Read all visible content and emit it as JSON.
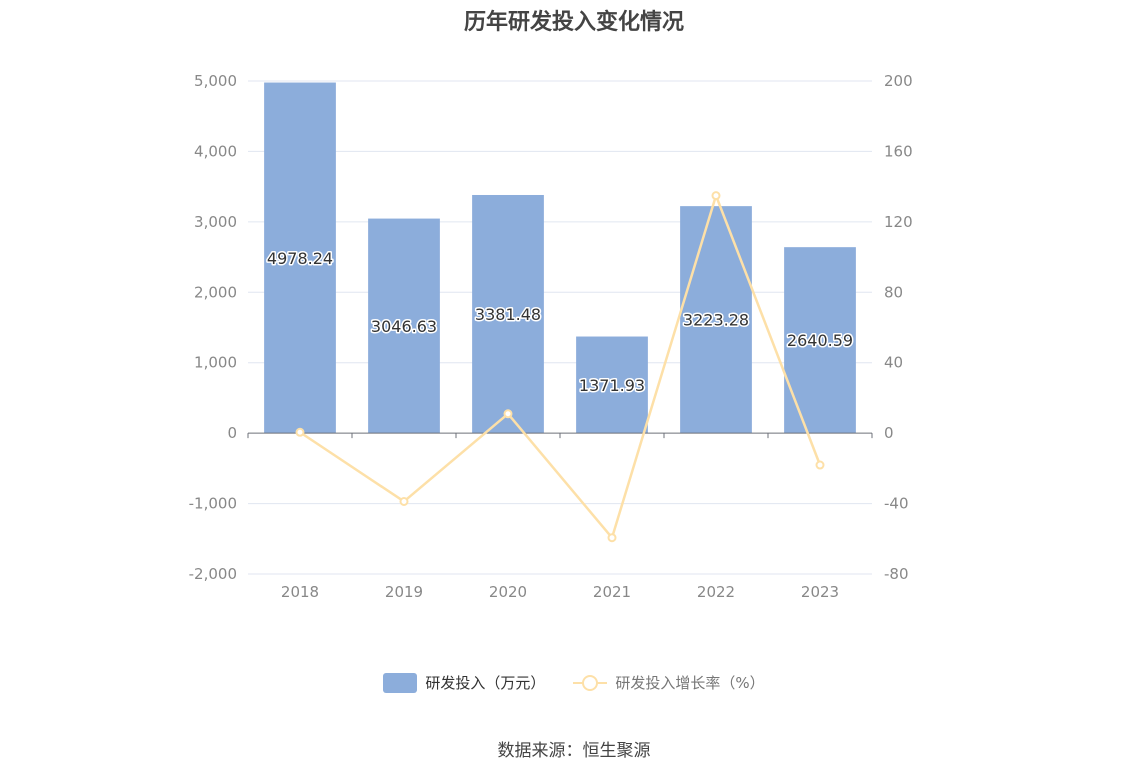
{
  "chart_data": {
    "type": "bar",
    "title": "历年研发投入变化情况",
    "categories": [
      "2018",
      "2019",
      "2020",
      "2021",
      "2022",
      "2023"
    ],
    "series": [
      {
        "name": "研发投入（万元）",
        "type": "bar",
        "axis": "left",
        "color": "#8caddb",
        "values": [
          4978.24,
          3046.63,
          3381.48,
          1371.93,
          3223.28,
          2640.59
        ],
        "data_labels": [
          "4978.24",
          "3046.63",
          "3381.48",
          "1371.93",
          "3223.28",
          "2640.59"
        ]
      },
      {
        "name": "研发投入增长率（%）",
        "type": "line",
        "axis": "right",
        "color": "#fde0a8",
        "values": [
          0.5,
          -38.8,
          11.0,
          -59.4,
          134.9,
          -18.1
        ]
      }
    ],
    "y_left": {
      "ylim": [
        -2000,
        5000
      ],
      "ticks": [
        -2000,
        -1000,
        0,
        1000,
        2000,
        3000,
        4000,
        5000
      ],
      "tick_labels": [
        "-2,000",
        "-1,000",
        "0",
        "1,000",
        "2,000",
        "3,000",
        "4,000",
        "5,000"
      ]
    },
    "y_right": {
      "ylim": [
        -80,
        200
      ],
      "ticks": [
        -80,
        -40,
        0,
        40,
        80,
        120,
        160,
        200
      ],
      "tick_labels": [
        "-80",
        "-40",
        "0",
        "40",
        "80",
        "120",
        "160",
        "200"
      ]
    },
    "grid": true,
    "legend_position": "bottom-center"
  },
  "source_text": "数据来源：恒生聚源"
}
